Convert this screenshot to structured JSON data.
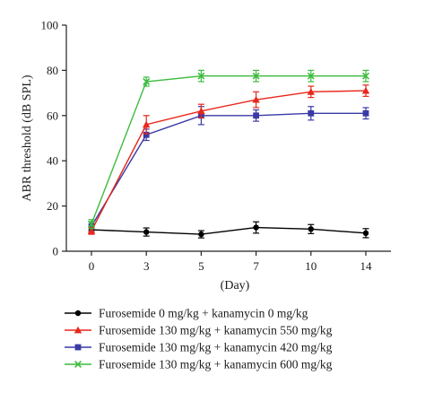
{
  "chart_data": {
    "type": "line",
    "title": "",
    "xlabel": "(Day)",
    "ylabel": "ABR threshold (dB SPL)",
    "ylim": [
      0,
      100
    ],
    "yticks": [
      0,
      20,
      40,
      60,
      80,
      100
    ],
    "categories": [
      "0",
      "3",
      "5",
      "7",
      "10",
      "14"
    ],
    "grid": false,
    "legend_position": "bottom",
    "series": [
      {
        "name": "Furosemide 0 mg/kg + kanamycin 0 mg/kg",
        "color": "#000000",
        "marker": "circle",
        "values": [
          9.5,
          8.5,
          7.5,
          10.5,
          9.8,
          8.0
        ],
        "errors": [
          1.2,
          1.8,
          1.6,
          2.5,
          2.0,
          2.0
        ]
      },
      {
        "name": "Furosemide 130 mg/kg + kanamycin 550 mg/kg",
        "color": "#e8271c",
        "marker": "triangle",
        "values": [
          9.0,
          56.0,
          62.0,
          67.0,
          70.5,
          71.0
        ],
        "errors": [
          1.5,
          4.0,
          3.0,
          3.5,
          2.5,
          2.5
        ]
      },
      {
        "name": "Furosemide 130 mg/kg + kanamycin 420 mg/kg",
        "color": "#3a3aa6",
        "marker": "square",
        "values": [
          11.0,
          51.5,
          60.0,
          60.0,
          61.0,
          61.0
        ],
        "errors": [
          2.0,
          2.5,
          4.0,
          2.5,
          3.0,
          2.5
        ]
      },
      {
        "name": "Furosemide 130 mg/kg + kanamycin 600 mg/kg",
        "color": "#3dbb3d",
        "marker": "x",
        "values": [
          12.0,
          75.0,
          77.5,
          77.5,
          77.5,
          77.5
        ],
        "errors": [
          2.0,
          2.0,
          2.5,
          2.5,
          2.5,
          2.5
        ]
      }
    ]
  }
}
